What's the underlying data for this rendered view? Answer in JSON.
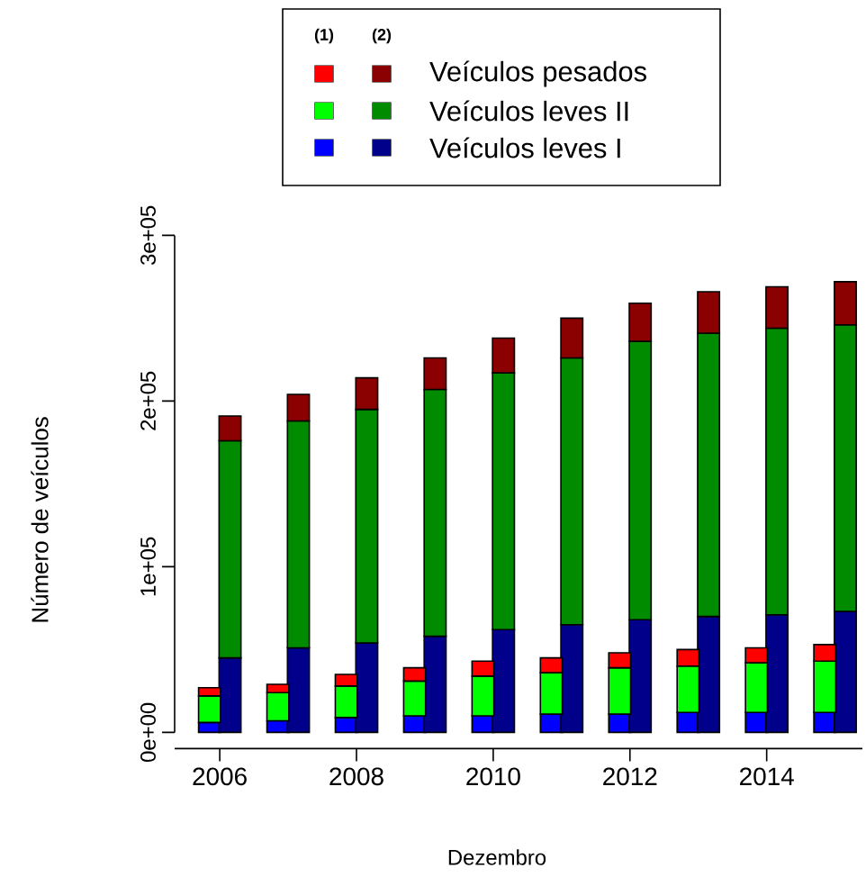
{
  "chart_data": {
    "type": "bar",
    "stacked": true,
    "xlabel": "Dezembro",
    "ylabel": "Número de veículos",
    "xlim": [
      2005.34,
      2015.4
    ],
    "xticks": [
      2006,
      2008,
      2010,
      2012,
      2014
    ],
    "ylim": [
      0,
      300000
    ],
    "yticks": [
      {
        "value": 0,
        "label": "0e+00"
      },
      {
        "value": 100000,
        "label": "1e+05"
      },
      {
        "value": 200000,
        "label": "2e+05"
      },
      {
        "value": 300000,
        "label": "3e+05"
      }
    ],
    "legend": "top",
    "annotations": [
      "(1)",
      "(2)"
    ],
    "x": [
      2005.85,
      2006.15,
      2006.85,
      2007.15,
      2007.85,
      2008.15,
      2008.85,
      2009.15,
      2009.85,
      2010.15,
      2010.85,
      2011.15,
      2011.85,
      2012.15,
      2012.85,
      2013.15,
      2013.85,
      2014.15,
      2014.85,
      2015.15
    ],
    "series": [
      {
        "name": "Veículos leves I",
        "colors": [
          "#0000ff",
          "#00008b",
          "#0000ff",
          "#00008b",
          "#0000ff",
          "#00008b",
          "#0000ff",
          "#00008b",
          "#0000ff",
          "#00008b",
          "#0000ff",
          "#00008b",
          "#0000ff",
          "#00008b",
          "#0000ff",
          "#00008b",
          "#0000ff",
          "#00008b",
          "#0000ff",
          "#00008b"
        ],
        "values": [
          6000,
          45000,
          7000,
          51000,
          9000,
          54000,
          10000,
          58000,
          10000,
          62000,
          11000,
          65000,
          11000,
          68000,
          12000,
          70000,
          12000,
          71000,
          12000,
          73000
        ]
      },
      {
        "name": "Veículos leves II",
        "colors": [
          "#00ff00",
          "#008b00",
          "#00ff00",
          "#008b00",
          "#00ff00",
          "#008b00",
          "#00ff00",
          "#008b00",
          "#00ff00",
          "#008b00",
          "#00ff00",
          "#008b00",
          "#00ff00",
          "#008b00",
          "#00ff00",
          "#008b00",
          "#00ff00",
          "#008b00",
          "#00ff00",
          "#008b00"
        ],
        "values": [
          16000,
          131000,
          17000,
          137000,
          19000,
          141000,
          21000,
          149000,
          24000,
          155000,
          25000,
          161000,
          28000,
          168000,
          28000,
          171000,
          30000,
          173000,
          31000,
          173000
        ]
      },
      {
        "name": "Veículos pesados",
        "colors": [
          "#ff0000",
          "#8b0000",
          "#ff0000",
          "#8b0000",
          "#ff0000",
          "#8b0000",
          "#ff0000",
          "#8b0000",
          "#ff0000",
          "#8b0000",
          "#ff0000",
          "#8b0000",
          "#ff0000",
          "#8b0000",
          "#ff0000",
          "#8b0000",
          "#ff0000",
          "#8b0000",
          "#ff0000",
          "#8b0000"
        ],
        "values": [
          5000,
          15000,
          5000,
          16000,
          7000,
          19000,
          8000,
          19000,
          9000,
          21000,
          9000,
          24000,
          9000,
          23000,
          10000,
          25000,
          9000,
          25000,
          10000,
          26000
        ]
      }
    ]
  }
}
